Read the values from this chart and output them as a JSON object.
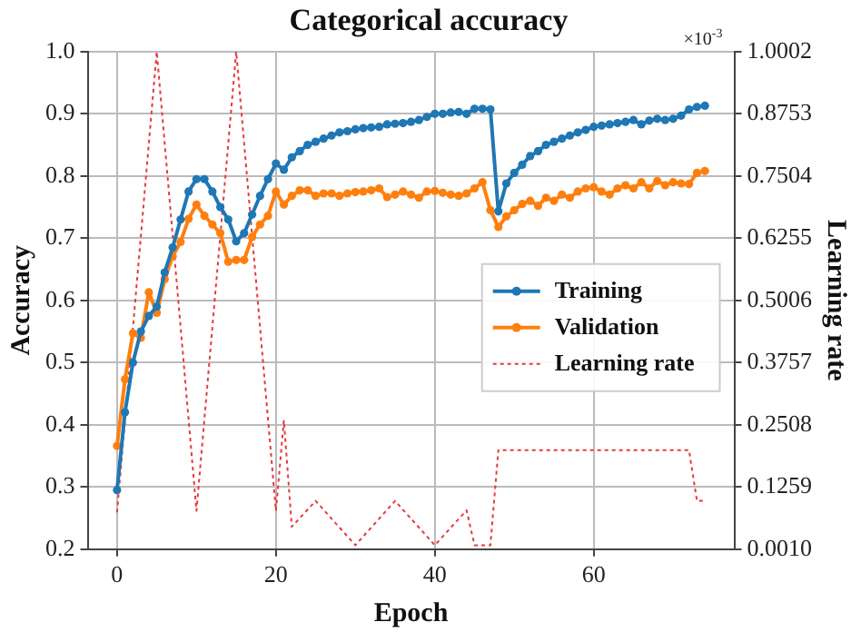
{
  "chart_data": {
    "type": "line",
    "title": "Categorical accuracy",
    "xlabel": "Epoch",
    "ylabel": "Accuracy",
    "y2label": "Learning rate",
    "annotations": [
      "×10$^{-3}$"
    ],
    "xlim": [
      -3.7,
      77.7
    ],
    "xticks": [
      0,
      20,
      40,
      60
    ],
    "ylim": [
      0.2,
      1.0
    ],
    "yticks": [
      0.2,
      0.3,
      0.4,
      0.5,
      0.6,
      0.7,
      0.8,
      0.9,
      {
        "value": 1.0,
        "label": "1.0"
      }
    ],
    "y2lim": [
      0.001,
      1.0002
    ],
    "y2ticks": [
      {
        "value": 0.001,
        "label": "0.0010"
      },
      {
        "value": 0.1259,
        "label": "0.1259"
      },
      {
        "value": 0.2508,
        "label": "0.2508"
      },
      {
        "value": 0.3757,
        "label": "0.3757"
      },
      {
        "value": 0.5006,
        "label": "0.5006"
      },
      {
        "value": 0.6255,
        "label": "0.6255"
      },
      {
        "value": 0.7504,
        "label": "0.7504"
      },
      {
        "value": 0.8753,
        "label": "0.8753"
      },
      {
        "value": 1.0002,
        "label": "1.0002"
      }
    ],
    "grid": true,
    "legend": "right",
    "marker": "circle",
    "x": [
      0,
      1,
      2,
      3,
      4,
      5,
      6,
      7,
      8,
      9,
      10,
      11,
      12,
      13,
      14,
      15,
      16,
      17,
      18,
      19,
      20,
      21,
      22,
      23,
      24,
      25,
      26,
      27,
      28,
      29,
      30,
      31,
      32,
      33,
      34,
      35,
      36,
      37,
      38,
      39,
      40,
      41,
      42,
      43,
      44,
      45,
      46,
      47,
      48,
      49,
      50,
      51,
      52,
      53,
      54,
      55,
      56,
      57,
      58,
      59,
      60,
      61,
      62,
      63,
      64,
      65,
      66,
      67,
      68,
      69,
      70,
      71,
      72,
      73,
      74
    ],
    "series": [
      {
        "name": "Training",
        "color": "#1f77b4",
        "values": [
          0.295,
          0.42,
          0.5,
          0.55,
          0.575,
          0.59,
          0.645,
          0.685,
          0.73,
          0.775,
          0.795,
          0.795,
          0.775,
          0.75,
          0.73,
          0.695,
          0.708,
          0.738,
          0.768,
          0.795,
          0.82,
          0.81,
          0.83,
          0.84,
          0.85,
          0.855,
          0.86,
          0.865,
          0.87,
          0.872,
          0.875,
          0.877,
          0.878,
          0.879,
          0.883,
          0.884,
          0.885,
          0.887,
          0.89,
          0.895,
          0.9,
          0.9,
          0.902,
          0.903,
          0.9,
          0.908,
          0.908,
          0.907,
          0.743,
          0.788,
          0.805,
          0.818,
          0.832,
          0.84,
          0.85,
          0.855,
          0.86,
          0.865,
          0.87,
          0.874,
          0.879,
          0.881,
          0.883,
          0.885,
          0.887,
          0.89,
          0.883,
          0.889,
          0.892,
          0.89,
          0.892,
          0.897,
          0.907,
          0.911,
          0.913
        ]
      },
      {
        "name": "Validation",
        "color": "#ff7f0e",
        "values": [
          0.366,
          0.473,
          0.547,
          0.54,
          0.613,
          0.58,
          0.634,
          0.671,
          0.694,
          0.731,
          0.754,
          0.736,
          0.722,
          0.708,
          0.662,
          0.665,
          0.665,
          0.702,
          0.722,
          0.736,
          0.775,
          0.754,
          0.768,
          0.777,
          0.777,
          0.768,
          0.772,
          0.772,
          0.768,
          0.772,
          0.774,
          0.775,
          0.777,
          0.78,
          0.766,
          0.77,
          0.775,
          0.77,
          0.765,
          0.775,
          0.776,
          0.773,
          0.77,
          0.768,
          0.772,
          0.78,
          0.79,
          0.745,
          0.718,
          0.735,
          0.745,
          0.755,
          0.76,
          0.752,
          0.765,
          0.76,
          0.77,
          0.765,
          0.775,
          0.78,
          0.782,
          0.775,
          0.77,
          0.78,
          0.785,
          0.78,
          0.79,
          0.78,
          0.792,
          0.785,
          0.79,
          0.788,
          0.787,
          0.805,
          0.808
        ]
      },
      {
        "name": "Learning rate",
        "color": "#e8383d",
        "type": "line",
        "axis": "y2",
        "marker": "none",
        "line_style": "dotted",
        "x": [
          0,
          5,
          10,
          15,
          20,
          21,
          22,
          25,
          30,
          35,
          40,
          44,
          45,
          47,
          48,
          72,
          73,
          74
        ],
        "values": [
          0.075,
          1.0,
          0.078,
          1.0,
          0.078,
          0.26,
          0.046,
          0.098,
          0.009,
          0.098,
          0.009,
          0.079,
          0.009,
          0.009,
          0.2,
          0.2,
          0.098,
          0.098
        ]
      }
    ]
  }
}
